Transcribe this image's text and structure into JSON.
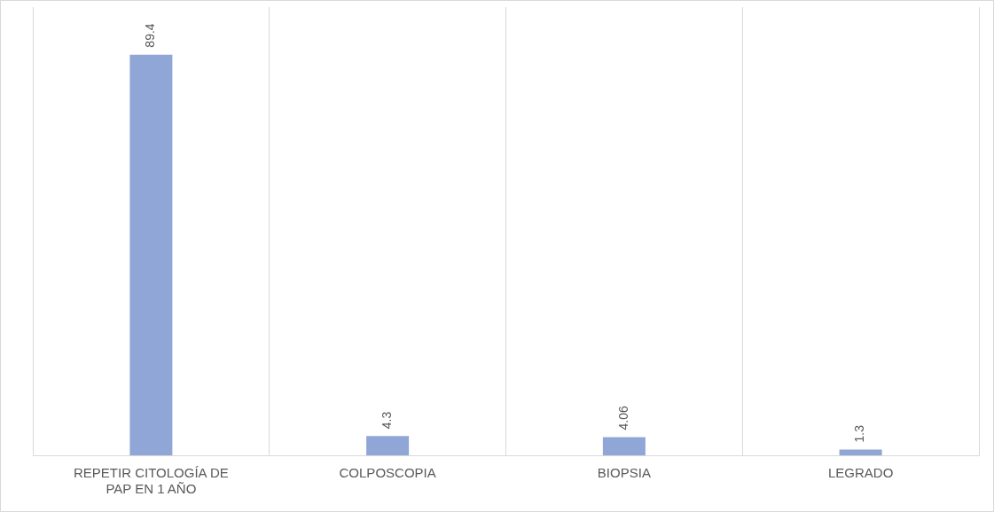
{
  "chart_data": {
    "type": "bar",
    "categories": [
      "REPETIR CITOLOGÍA DE PAP EN 1 AÑO",
      "COLPOSCOPIA",
      "BIOPSIA",
      "LEGRADO"
    ],
    "values": [
      89.4,
      4.3,
      4.06,
      1.3
    ],
    "color": "#8fa6d6",
    "data_labels": true,
    "grid": "x",
    "legend": false
  }
}
